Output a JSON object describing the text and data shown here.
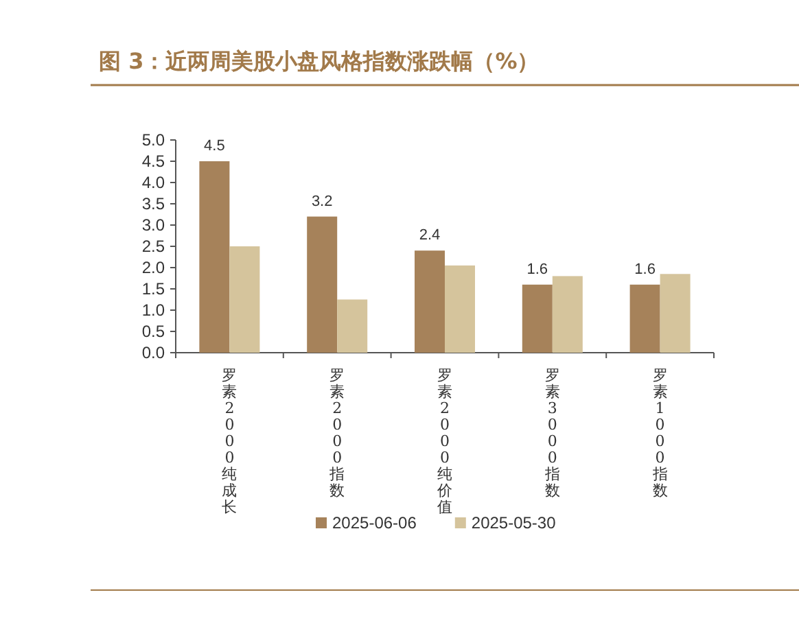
{
  "chart_data": {
    "type": "bar",
    "title": "图 3：近两周美股小盘风格指数涨跌幅（%）",
    "categories": [
      "罗素2000纯成长",
      "罗素2000指数",
      "罗素2000纯价值",
      "罗素3000指数",
      "罗素1000指数"
    ],
    "series": [
      {
        "name": "2025-06-06",
        "color": "#a6825a",
        "values": [
          4.5,
          3.2,
          2.4,
          1.6,
          1.6
        ],
        "value_labels": [
          "4.5",
          "3.2",
          "2.4",
          "1.6",
          "1.6"
        ]
      },
      {
        "name": "2025-05-30",
        "color": "#d5c49c",
        "values": [
          2.5,
          1.25,
          2.05,
          1.8,
          1.85
        ]
      }
    ],
    "ylim": [
      0,
      5
    ],
    "yticks": [
      {
        "value": 0,
        "label": "0.0"
      },
      {
        "value": 0.5,
        "label": "0.5"
      },
      {
        "value": 1,
        "label": "1.0"
      },
      {
        "value": 1.5,
        "label": "1.5"
      },
      {
        "value": 2,
        "label": "2.0"
      },
      {
        "value": 2.5,
        "label": "2.5"
      },
      {
        "value": 3,
        "label": "3.0"
      },
      {
        "value": 3.5,
        "label": "3.5"
      },
      {
        "value": 4,
        "label": "4.0"
      },
      {
        "value": 4.5,
        "label": "4.5"
      },
      {
        "value": 5,
        "label": "5.0"
      }
    ],
    "grid": false,
    "legend": "bottom"
  }
}
